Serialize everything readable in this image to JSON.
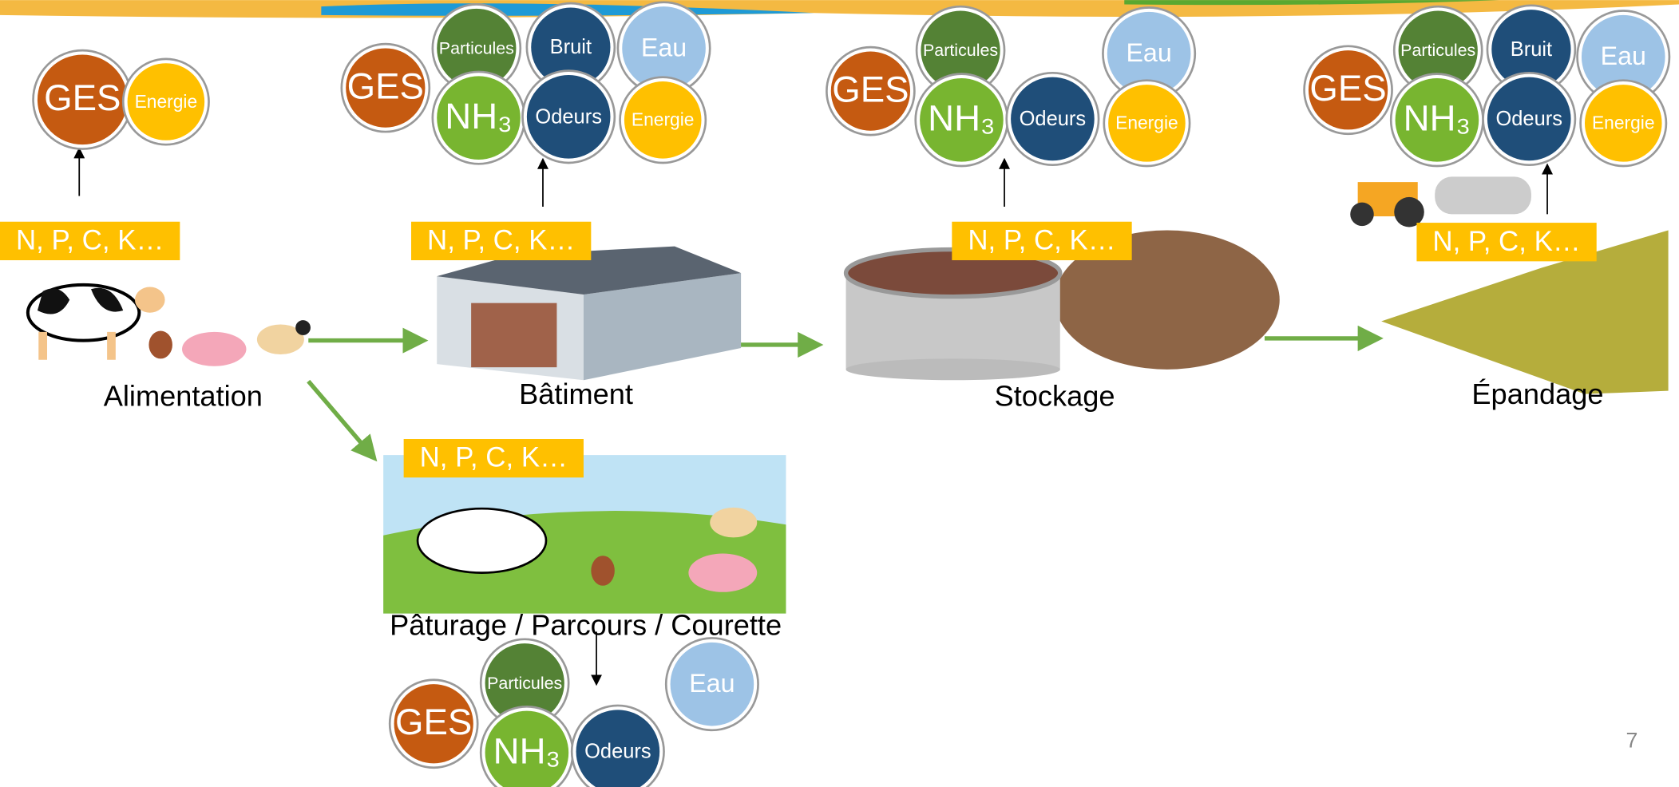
{
  "stages": [
    {
      "label": "Alimentation",
      "badge": "N, P, C, K…",
      "emissions": [
        "GES",
        "Energie"
      ]
    },
    {
      "label": "Bâtiment",
      "badge": "N, P, C, K…",
      "emissions": [
        "GES",
        "Particules",
        "Bruit",
        "Eau",
        "NH₃",
        "Odeurs",
        "Energie"
      ]
    },
    {
      "label": "Stockage",
      "badge": "N, P, C, K…",
      "emissions": [
        "GES",
        "Particules",
        "Eau",
        "NH₃",
        "Odeurs",
        "Energie"
      ]
    },
    {
      "label": "Épandage",
      "badge": "N, P, C, K…",
      "emissions": [
        "GES",
        "Particules",
        "Bruit",
        "Eau",
        "NH₃",
        "Odeurs",
        "Energie"
      ]
    },
    {
      "label": "Pâturage / Parcours  / Courette",
      "badge": "N, P, C, K…",
      "emissions": [
        "GES",
        "Particules",
        "Eau",
        "NH₃",
        "Odeurs"
      ]
    }
  ],
  "page_number": "7"
}
